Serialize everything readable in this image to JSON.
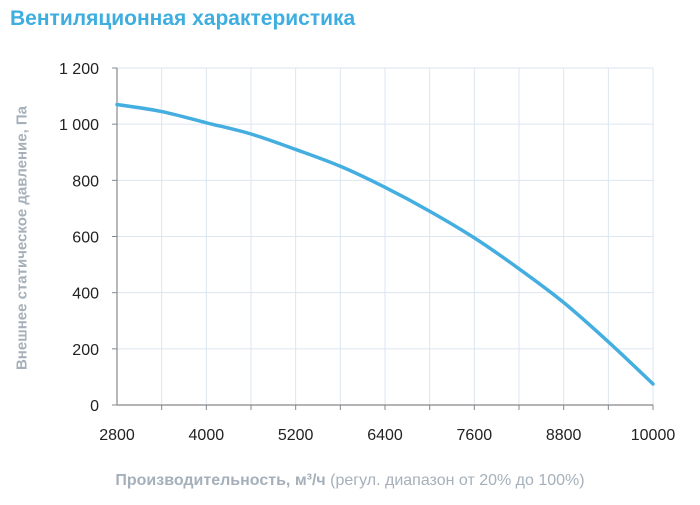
{
  "chart_data": {
    "type": "line",
    "title": "Вентиляционная характеристика",
    "ylabel": "Внешнее статическое давление, Па",
    "xlabel_bold": "Производительность",
    "xlabel_unit": ", м³/ч",
    "xlabel_note": " (регул. диапазон от 20% до 100%)",
    "xlim": [
      2800,
      10000
    ],
    "ylim": [
      0,
      1200
    ],
    "x_ticks": [
      "2800",
      "4000",
      "5200",
      "6400",
      "7600",
      "8800",
      "10000"
    ],
    "y_ticks": [
      "0",
      "200",
      "400",
      "600",
      "800",
      "1 000",
      "1 200"
    ],
    "grid": true,
    "series": [
      {
        "color": "#45aee0",
        "x": [
          2800,
          3400,
          4000,
          4600,
          5200,
          5800,
          6400,
          7000,
          7600,
          8200,
          8800,
          9400,
          10000
        ],
        "y": [
          1070,
          1045,
          1005,
          965,
          910,
          850,
          775,
          690,
          595,
          485,
          365,
          225,
          75
        ]
      }
    ]
  }
}
